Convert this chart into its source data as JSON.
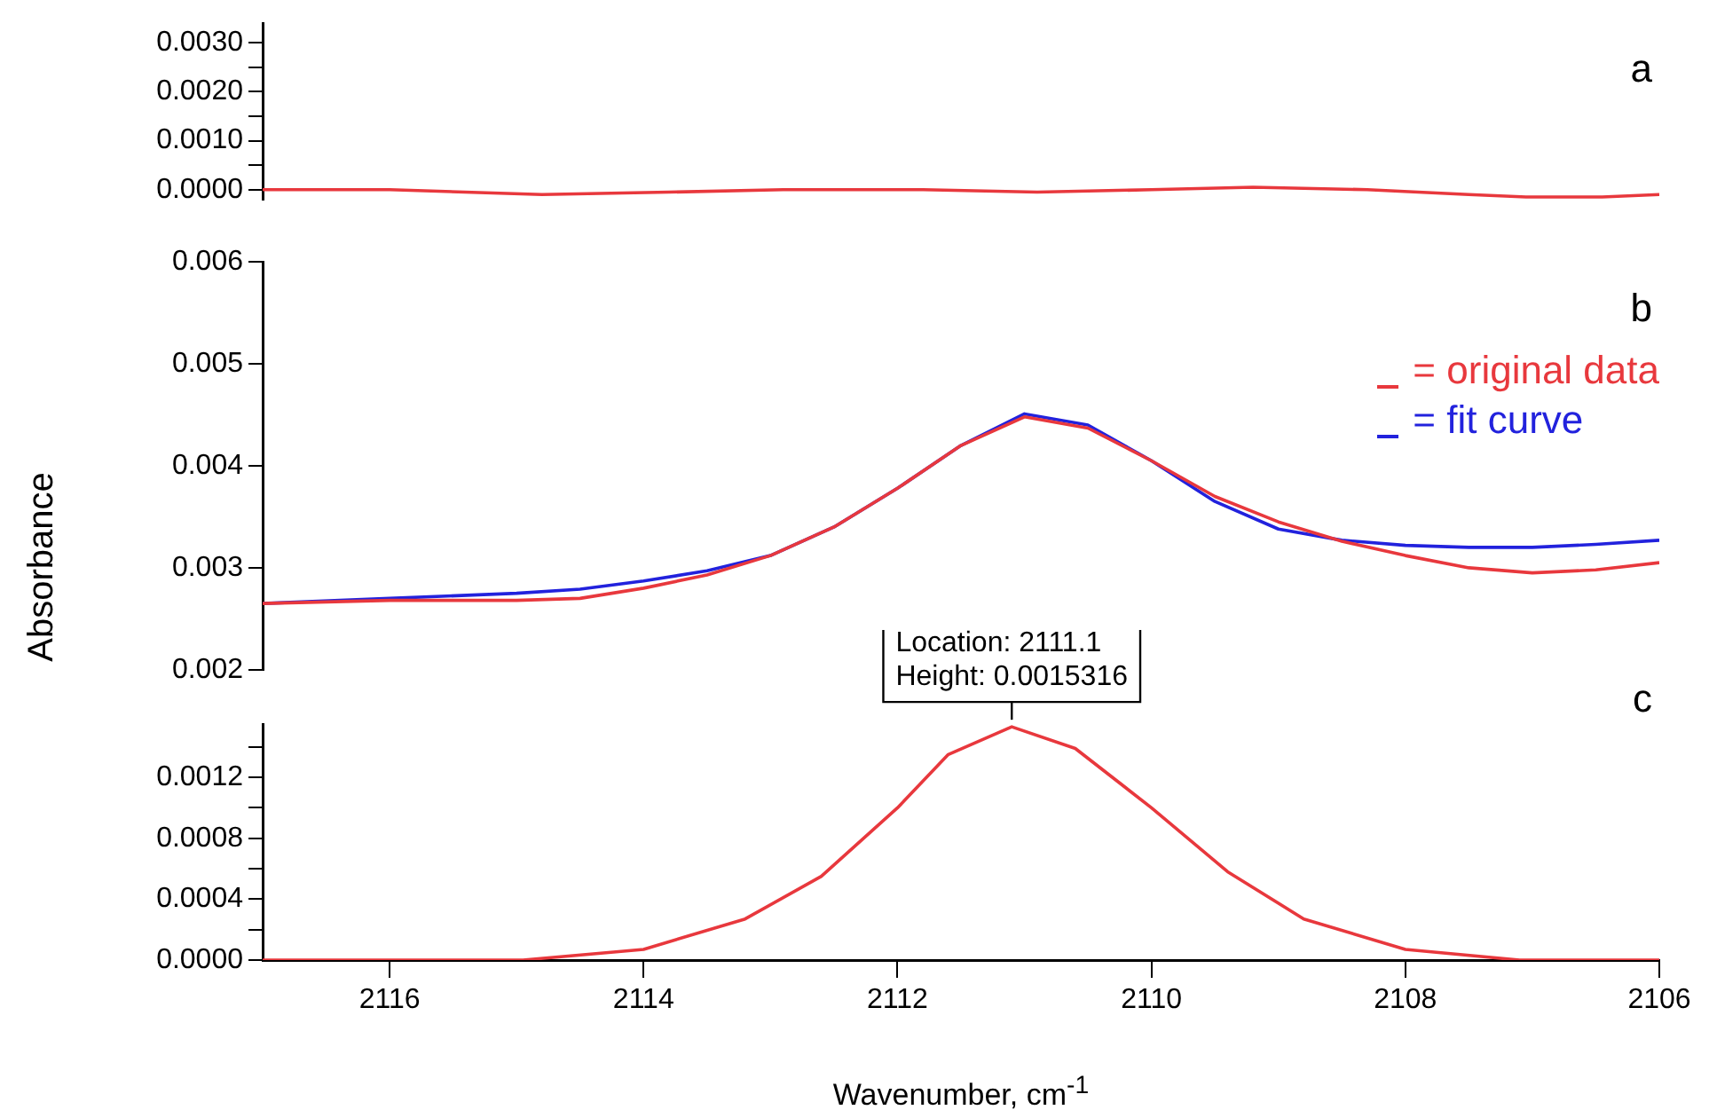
{
  "chart_data": [
    {
      "type": "line",
      "x": [
        2117,
        2116,
        2114.8,
        2113.8,
        2112.9,
        2111.8,
        2110.9,
        2110,
        2109.2,
        2108.3,
        2107.5,
        2107.05,
        2106.45,
        2106
      ],
      "series": [
        {
          "color": "#e8383d",
          "values": [
            0,
            0,
            -0.0001,
            -5e-05,
            0,
            0,
            -5e-05,
            0,
            5e-05,
            0,
            -0.0001,
            -0.00015,
            -0.00015,
            -0.0001
          ]
        }
      ],
      "xlim": [
        2117,
        2106
      ],
      "ylim": [
        -0.0002,
        0.0034
      ],
      "yticks": [
        {
          "value": 0,
          "label": "0.0000"
        },
        {
          "value": 0.0005,
          "label": null
        },
        {
          "value": 0.001,
          "label": "0.0010"
        },
        {
          "value": 0.0015,
          "label": null
        },
        {
          "value": 0.002,
          "label": "0.0020"
        },
        {
          "value": 0.0025,
          "label": null
        },
        {
          "value": 0.003,
          "label": "0.0030"
        }
      ],
      "tick_labels": "y",
      "annotations": [
        "a"
      ]
    },
    {
      "type": "line",
      "x": [
        2117,
        2116,
        2115,
        2114.5,
        2114,
        2113.5,
        2113,
        2112.5,
        2112,
        2111.5,
        2111,
        2110.5,
        2110,
        2109.5,
        2109,
        2108.5,
        2108,
        2107.5,
        2107,
        2106.5,
        2106
      ],
      "series": [
        {
          "name": "= original data",
          "color": "#e8383d",
          "values": [
            0.00265,
            0.00268,
            0.00268,
            0.0027,
            0.0028,
            0.00293,
            0.00312,
            0.0034,
            0.00378,
            0.0042,
            0.00448,
            0.00437,
            0.00405,
            0.0037,
            0.00345,
            0.00326,
            0.00312,
            0.003,
            0.00295,
            0.00298,
            0.00305
          ]
        },
        {
          "name": "= fit curve",
          "color": "#2222dd",
          "values": [
            0.00265,
            0.0027,
            0.00275,
            0.00279,
            0.00287,
            0.00297,
            0.00312,
            0.0034,
            0.00378,
            0.0042,
            0.00451,
            0.0044,
            0.00405,
            0.00365,
            0.00338,
            0.00327,
            0.00322,
            0.0032,
            0.0032,
            0.00323,
            0.00327
          ]
        }
      ],
      "xlim": [
        2117,
        2106
      ],
      "ylim": [
        0.002,
        0.006
      ],
      "yticks": [
        {
          "value": 0.002,
          "label": "0.002"
        },
        {
          "value": 0.003,
          "label": "0.003"
        },
        {
          "value": 0.004,
          "label": "0.004"
        },
        {
          "value": 0.005,
          "label": "0.005"
        },
        {
          "value": 0.006,
          "label": "0.006"
        }
      ],
      "tick_labels": "y",
      "ylabel": "Absorbance",
      "legend": "right",
      "annotations": [
        "b"
      ]
    },
    {
      "type": "line",
      "x": [
        2117,
        2116,
        2114.95,
        2114,
        2113.2,
        2112.6,
        2112,
        2111.6,
        2111.1,
        2110.6,
        2110,
        2109.4,
        2108.8,
        2108,
        2107.1,
        2106
      ],
      "series": [
        {
          "color": "#e8383d",
          "values": [
            0,
            0,
            0,
            7e-05,
            0.00027,
            0.00055,
            0.001,
            0.00135,
            0.0015316,
            0.00139,
            0.001,
            0.00058,
            0.00027,
            7e-05,
            0,
            0
          ]
        }
      ],
      "xlim": [
        2117,
        2106
      ],
      "ylim": [
        0,
        0.00155
      ],
      "xticks": [
        2116,
        2114,
        2112,
        2110,
        2108,
        2106
      ],
      "yticks": [
        {
          "value": 0,
          "label": "0.0000"
        },
        {
          "value": 0.0002,
          "label": null
        },
        {
          "value": 0.0004,
          "label": "0.0004"
        },
        {
          "value": 0.0006,
          "label": null
        },
        {
          "value": 0.0008,
          "label": "0.0008"
        },
        {
          "value": 0.001,
          "label": null
        },
        {
          "value": 0.0012,
          "label": "0.0012"
        },
        {
          "value": 0.0014,
          "label": null
        }
      ],
      "xlabel": "Wavenumber, cm$^{-1}$",
      "annotations": [
        "c",
        {
          "text": "Location: 2111.1\nHeight: 0.0015316",
          "x": 2111.1,
          "y": 0.0015316
        }
      ]
    }
  ]
}
